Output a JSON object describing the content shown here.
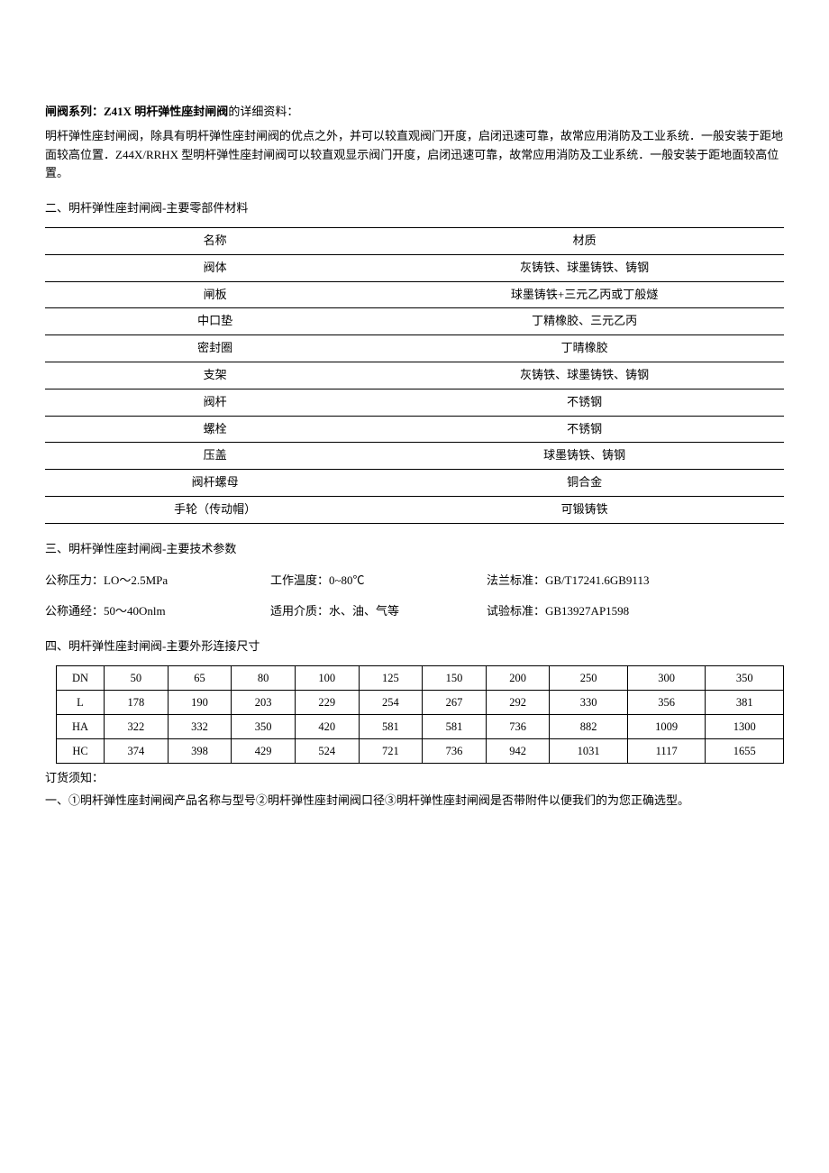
{
  "header": {
    "prefix_bold": "闸阀系列：Z41X 明杆弹性座封闸阀",
    "suffix": "的详细资料："
  },
  "intro": "明杆弹性座封闸阀，除具有明杆弹性座封闸阀的优点之外，并可以较直观阀门开度，启闭迅速可靠，故常应用消防及工业系统．一般安装于距地面较高位置．Z44X/RRHX 型明杆弹性座封闸阀可以较直观显示阀门开度，启闭迅速可靠，故常应用消防及工业系统．一般安装于距地面较高位置。",
  "section2_title": "二、明杆弹性座封闸阀-主要零部件材料",
  "materials": {
    "columns": [
      "名称",
      "材质"
    ],
    "rows": [
      [
        "阀体",
        "灰铸铁、球墨铸铁、铸钢"
      ],
      [
        "闸板",
        "球墨铸铁+三元乙丙或丁般燧"
      ],
      [
        "中口垫",
        "丁精橡胶、三元乙丙"
      ],
      [
        "密封圈",
        "丁晴橡胶"
      ],
      [
        "支架",
        "灰铸铁、球墨铸铁、铸钢"
      ],
      [
        "阀杆",
        "不锈钢"
      ],
      [
        "螺栓",
        "不锈钢"
      ],
      [
        "压盖",
        "球墨铸铁、铸钢"
      ],
      [
        "阀杆螺母",
        "铜合金"
      ],
      [
        "手轮（传动帽）",
        "可锻铸铁"
      ]
    ]
  },
  "section3_title": "三、明杆弹性座封闸阀-主要技术参数",
  "params": {
    "row1": {
      "a": "公称压力：LO～2.5MPa",
      "b": "工作温度：0~80℃",
      "c": "法兰标准：GB/T17241.6GB9113"
    },
    "row2": {
      "a": "公称通经：50～40Onlm",
      "b": "适用介质：水、油、气等",
      "c": "试验标准：GB13927AP1598"
    }
  },
  "section4_title": "四、明杆弹性座封闸阀-主要外形连接尺寸",
  "dims": {
    "rows": [
      [
        "DN",
        "50",
        "65",
        "80",
        "100",
        "125",
        "150",
        "200",
        "250",
        "300",
        "350"
      ],
      [
        "L",
        "178",
        "190",
        "203",
        "229",
        "254",
        "267",
        "292",
        "330",
        "356",
        "381"
      ],
      [
        "HA",
        "322",
        "332",
        "350",
        "420",
        "581",
        "581",
        "736",
        "882",
        "1009",
        "1300"
      ],
      [
        "HC",
        "374",
        "398",
        "429",
        "524",
        "721",
        "736",
        "942",
        "1031",
        "1117",
        "1655"
      ]
    ]
  },
  "order_note_title": "订货须知：",
  "order_note_body": "一、①明杆弹性座封闸阀产品名称与型号②明杆弹性座封闸阀口径③明杆弹性座封闸阀是否带附件以便我们的为您正确选型。"
}
